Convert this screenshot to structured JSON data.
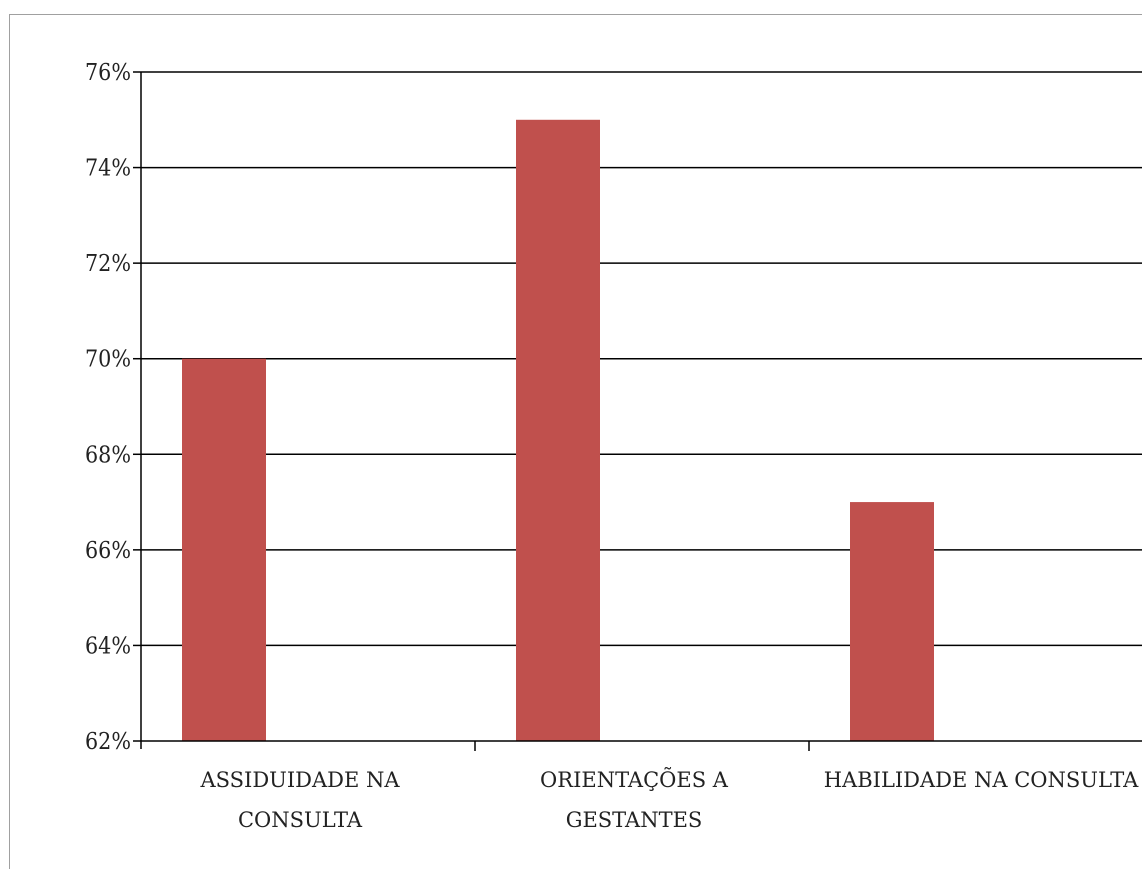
{
  "chart_data": {
    "type": "bar",
    "title": "",
    "xlabel": "",
    "ylabel": "",
    "categories": [
      [
        "ASSIDUIDADE NA",
        "CONSULTA"
      ],
      [
        "ORIENTAÇÕES A",
        "GESTANTES"
      ],
      [
        "HABILIDADE NA CONSULTA"
      ]
    ],
    "values": [
      70,
      75,
      67
    ],
    "ylim": [
      62,
      76
    ],
    "yticks": [
      62,
      64,
      66,
      68,
      70,
      72,
      74,
      76
    ],
    "ytick_suffix": "%",
    "grid": true,
    "legend": "none",
    "bar_color": "#c0504d",
    "grid_color": "#000000"
  }
}
